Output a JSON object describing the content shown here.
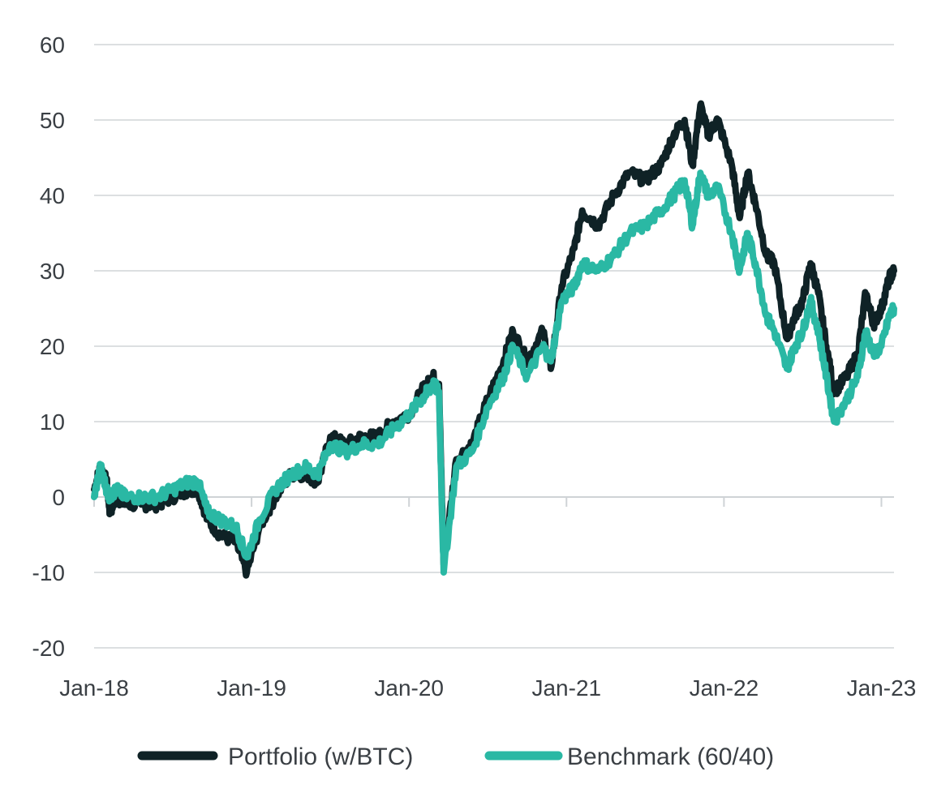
{
  "chart_data": {
    "type": "line",
    "title": "",
    "xlabel": "",
    "ylabel": "",
    "ylim": [
      -20,
      60
    ],
    "xlim": [
      2018.0,
      2023.08
    ],
    "y_ticks": [
      60,
      50,
      40,
      30,
      20,
      10,
      0,
      -10,
      -20
    ],
    "y_tick_labels": [
      "60",
      "50",
      "40",
      "30",
      "20",
      "10",
      "0",
      "-10",
      "-20"
    ],
    "x_ticks": [
      2018.0,
      2019.0,
      2020.0,
      2021.0,
      2022.0,
      2023.0
    ],
    "x_tick_labels": [
      "Jan-18",
      "Jan-19",
      "Jan-20",
      "Jan-21",
      "Jan-22",
      "Jan-23"
    ],
    "grid": "horizontal",
    "legend_position": "bottom",
    "series": [
      {
        "name": "Portfolio (w/BTC)",
        "color": "#0f2226",
        "x": [
          2018.0,
          2018.04,
          2018.08,
          2018.1,
          2018.14,
          2018.2,
          2018.3,
          2018.4,
          2018.5,
          2018.6,
          2018.66,
          2018.72,
          2018.8,
          2018.9,
          2018.97,
          2019.05,
          2019.15,
          2019.25,
          2019.35,
          2019.42,
          2019.5,
          2019.6,
          2019.7,
          2019.8,
          2019.9,
          2020.0,
          2020.08,
          2020.12,
          2020.15,
          2020.19,
          2020.22,
          2020.3,
          2020.4,
          2020.5,
          2020.6,
          2020.66,
          2020.75,
          2020.85,
          2020.9,
          2020.97,
          2021.05,
          2021.1,
          2021.2,
          2021.3,
          2021.4,
          2021.5,
          2021.6,
          2021.68,
          2021.75,
          2021.8,
          2021.85,
          2021.9,
          2021.96,
          2022.05,
          2022.1,
          2022.15,
          2022.2,
          2022.27,
          2022.32,
          2022.4,
          2022.45,
          2022.5,
          2022.55,
          2022.6,
          2022.65,
          2022.7,
          2022.78,
          2022.85,
          2022.9,
          2022.95,
          2023.0,
          2023.05,
          2023.08
        ],
        "values": [
          1,
          4,
          2,
          -2,
          0,
          -1,
          -1,
          -1,
          0,
          1,
          1,
          -3,
          -5,
          -6,
          -10,
          -4,
          0,
          3,
          3,
          2,
          8,
          7,
          8,
          8,
          10,
          11,
          14,
          15,
          16,
          15,
          -9,
          5,
          7,
          13,
          18,
          22,
          18,
          22,
          17,
          28,
          33,
          38,
          36,
          40,
          43,
          42,
          44,
          48,
          50,
          44,
          52,
          48,
          50,
          44,
          37,
          43,
          39,
          32,
          31,
          21,
          24,
          26,
          31,
          27,
          20,
          14,
          16,
          19,
          27,
          23,
          25,
          29,
          30
        ]
      },
      {
        "name": "Benchmark (60/40)",
        "color": "#2ab8a4",
        "x": [
          2018.0,
          2018.04,
          2018.08,
          2018.1,
          2018.14,
          2018.2,
          2018.3,
          2018.4,
          2018.5,
          2018.6,
          2018.66,
          2018.72,
          2018.8,
          2018.9,
          2018.97,
          2019.05,
          2019.15,
          2019.25,
          2019.35,
          2019.42,
          2019.5,
          2019.6,
          2019.7,
          2019.8,
          2019.9,
          2020.0,
          2020.08,
          2020.12,
          2020.15,
          2020.19,
          2020.22,
          2020.3,
          2020.4,
          2020.5,
          2020.6,
          2020.66,
          2020.75,
          2020.85,
          2020.9,
          2020.97,
          2021.05,
          2021.1,
          2021.2,
          2021.3,
          2021.4,
          2021.5,
          2021.6,
          2021.68,
          2021.75,
          2021.8,
          2021.85,
          2021.9,
          2021.96,
          2022.05,
          2022.1,
          2022.15,
          2022.2,
          2022.27,
          2022.32,
          2022.4,
          2022.45,
          2022.5,
          2022.55,
          2022.6,
          2022.65,
          2022.7,
          2022.78,
          2022.85,
          2022.9,
          2022.95,
          2023.0,
          2023.05,
          2023.08
        ],
        "values": [
          0,
          4,
          1,
          0,
          1,
          0,
          0,
          0,
          1,
          2,
          2,
          -2,
          -3,
          -4,
          -8,
          -3,
          1,
          3,
          4,
          3,
          7,
          6,
          7,
          7,
          9,
          11,
          13,
          14,
          15,
          14,
          -10,
          4,
          6,
          12,
          16,
          20,
          16,
          20,
          18,
          26,
          28,
          31,
          30,
          32,
          35,
          36,
          38,
          40,
          42,
          36,
          43,
          40,
          41,
          35,
          30,
          35,
          31,
          24,
          22,
          17,
          20,
          22,
          26,
          22,
          16,
          10,
          13,
          16,
          22,
          19,
          20,
          24,
          25
        ]
      }
    ]
  }
}
